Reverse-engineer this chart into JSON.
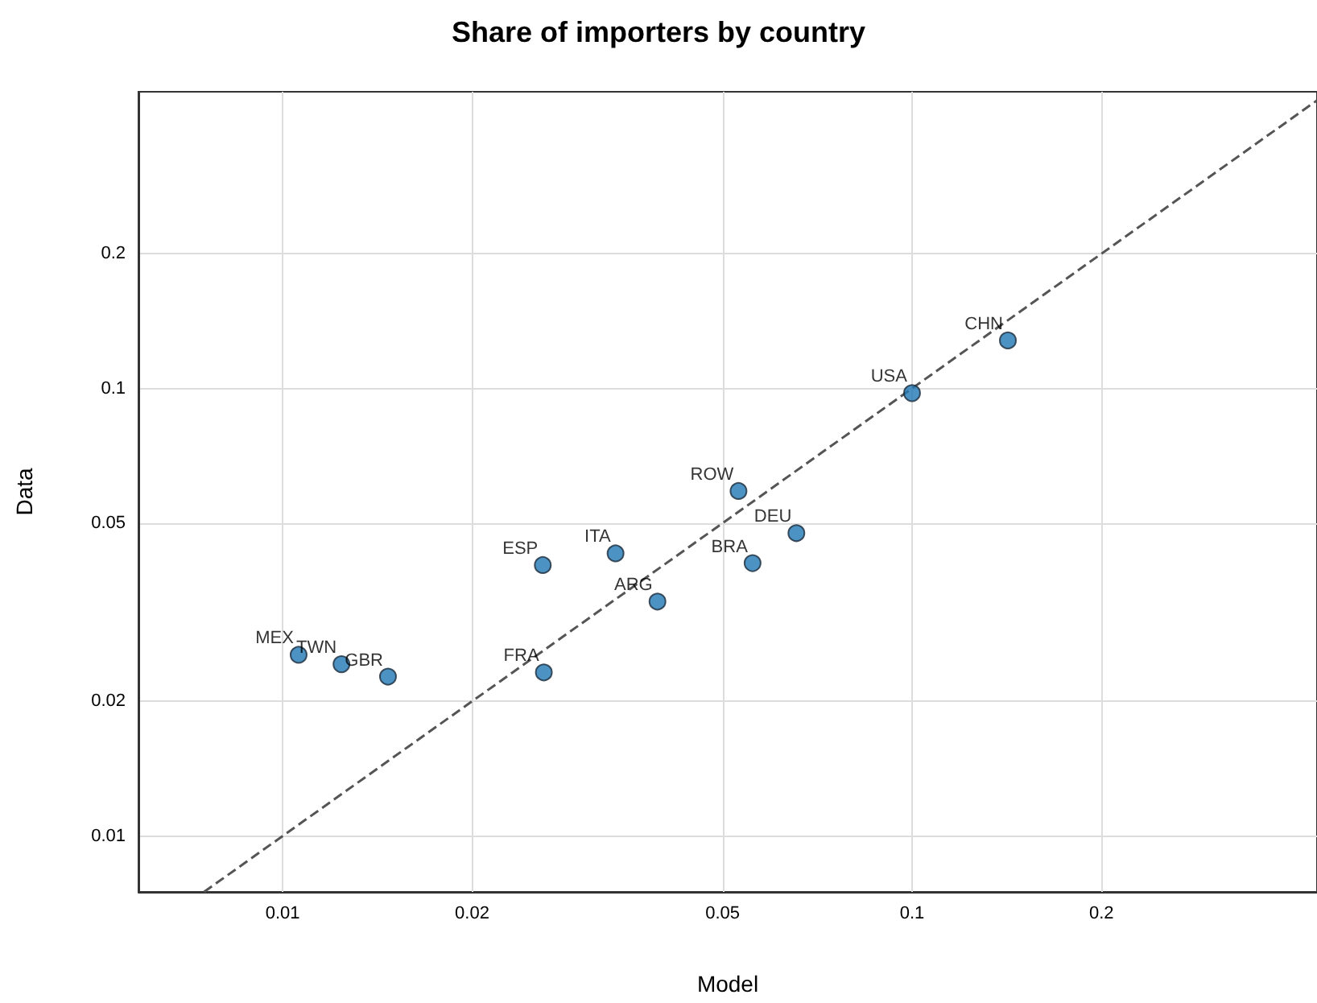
{
  "chart_data": {
    "type": "scatter",
    "title": "Share of importers by country",
    "xlabel": "Model",
    "ylabel": "Data",
    "log": "xy",
    "grid": true,
    "marker": "circle",
    "xlim": [
      0.0059,
      0.44
    ],
    "ylim": [
      0.0075,
      0.46
    ],
    "xticks": [
      0.01,
      0.02,
      0.05,
      0.1,
      0.2
    ],
    "yticks": [
      0.01,
      0.02,
      0.05,
      0.1,
      0.2
    ],
    "series": [
      {
        "color": "#1f77b4",
        "x": [
          0.142,
          0.1,
          0.053,
          0.0655,
          0.0558,
          0.0338,
          0.0259,
          0.0394,
          0.026,
          0.0106,
          0.0124,
          0.0147
        ],
        "values": [
          0.128,
          0.0976,
          0.059,
          0.0475,
          0.0407,
          0.0428,
          0.0403,
          0.0334,
          0.0232,
          0.0254,
          0.0242,
          0.0227
        ]
      },
      {
        "type": "line",
        "color": "#555555",
        "line_style": "dashed",
        "marker": "none",
        "x": [
          0.0075,
          0.44
        ],
        "values": [
          0.0075,
          0.44
        ]
      }
    ],
    "annotations": [
      {
        "text": "CHN",
        "x": 0.142,
        "y": 0.128
      },
      {
        "text": "USA",
        "x": 0.1,
        "y": 0.0976
      },
      {
        "text": "ROW",
        "x": 0.053,
        "y": 0.059
      },
      {
        "text": "DEU",
        "x": 0.0655,
        "y": 0.0475
      },
      {
        "text": "BRA",
        "x": 0.0558,
        "y": 0.0407
      },
      {
        "text": "ITA",
        "x": 0.0338,
        "y": 0.0428
      },
      {
        "text": "ESP",
        "x": 0.0259,
        "y": 0.0403
      },
      {
        "text": "ARG",
        "x": 0.0394,
        "y": 0.0334
      },
      {
        "text": "FRA",
        "x": 0.026,
        "y": 0.0232
      },
      {
        "text": "MEX",
        "x": 0.0106,
        "y": 0.0254
      },
      {
        "text": "TWN",
        "x": 0.0124,
        "y": 0.0242
      },
      {
        "text": "GBR",
        "x": 0.0147,
        "y": 0.0227
      }
    ]
  }
}
